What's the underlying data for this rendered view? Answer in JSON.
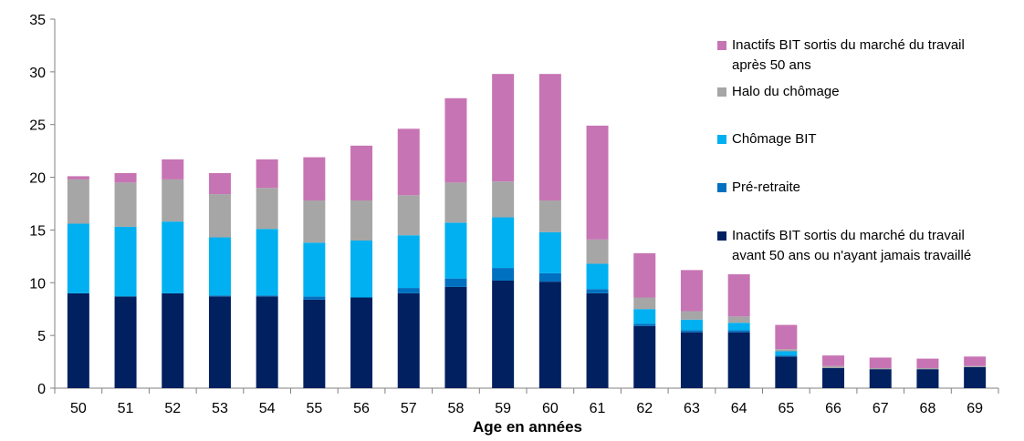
{
  "chart_data": {
    "type": "bar",
    "stacked": true,
    "xlabel": "Age en années",
    "ylabel": "",
    "ylim": [
      0,
      35
    ],
    "yticks": [
      0,
      5,
      10,
      15,
      20,
      25,
      30,
      35
    ],
    "grid": false,
    "legend_position": "right",
    "categories": [
      "50",
      "51",
      "52",
      "53",
      "54",
      "55",
      "56",
      "57",
      "58",
      "59",
      "60",
      "61",
      "62",
      "63",
      "64",
      "65",
      "66",
      "67",
      "68",
      "69"
    ],
    "series": [
      {
        "name": "Inactifs BIT sortis du marché du travail avant 50 ans ou n'ayant jamais travaillé",
        "legend_lines": [
          "Inactifs BIT sortis du marché du travail",
          "avant 50 ans ou n'ayant jamais travaillé"
        ],
        "color": "#002060",
        "values": [
          9.0,
          8.7,
          9.0,
          8.7,
          8.7,
          8.4,
          8.6,
          9.0,
          9.6,
          10.2,
          10.1,
          9.0,
          5.9,
          5.3,
          5.3,
          3.0,
          1.9,
          1.8,
          1.8,
          2.0
        ]
      },
      {
        "name": "Pré-retraite",
        "legend_lines": [
          "Pré-retraite"
        ],
        "color": "#0070c0",
        "values": [
          0.0,
          0.0,
          0.0,
          0.1,
          0.1,
          0.3,
          0.0,
          0.5,
          0.8,
          1.2,
          0.8,
          0.4,
          0.2,
          0.2,
          0.2,
          0.1,
          0.0,
          0.0,
          0.0,
          0.0
        ]
      },
      {
        "name": "Chômage BIT",
        "legend_lines": [
          "Chômage BIT"
        ],
        "color": "#00b0f0",
        "values": [
          6.6,
          6.6,
          6.8,
          5.5,
          6.3,
          5.1,
          5.4,
          5.0,
          5.3,
          4.8,
          3.9,
          2.4,
          1.4,
          1.0,
          0.7,
          0.4,
          0.0,
          0.0,
          0.0,
          0.0
        ]
      },
      {
        "name": "Halo du chômage",
        "legend_lines": [
          "Halo du chômage"
        ],
        "color": "#a6a6a6",
        "values": [
          4.2,
          4.2,
          4.0,
          4.1,
          3.9,
          4.0,
          3.8,
          3.8,
          3.8,
          3.4,
          3.0,
          2.3,
          1.1,
          0.8,
          0.6,
          0.2,
          0.2,
          0.1,
          0.1,
          0.1
        ]
      },
      {
        "name": "Inactifs BIT sortis du marché du travail après 50 ans",
        "legend_lines": [
          "Inactifs BIT sortis du marché du travail",
          "après 50 ans"
        ],
        "color": "#c774b4",
        "values": [
          0.3,
          0.9,
          1.9,
          2.0,
          2.7,
          4.1,
          5.2,
          6.3,
          8.0,
          10.2,
          12.0,
          10.8,
          4.2,
          3.9,
          4.0,
          2.3,
          1.0,
          1.0,
          0.9,
          0.9
        ]
      }
    ]
  }
}
